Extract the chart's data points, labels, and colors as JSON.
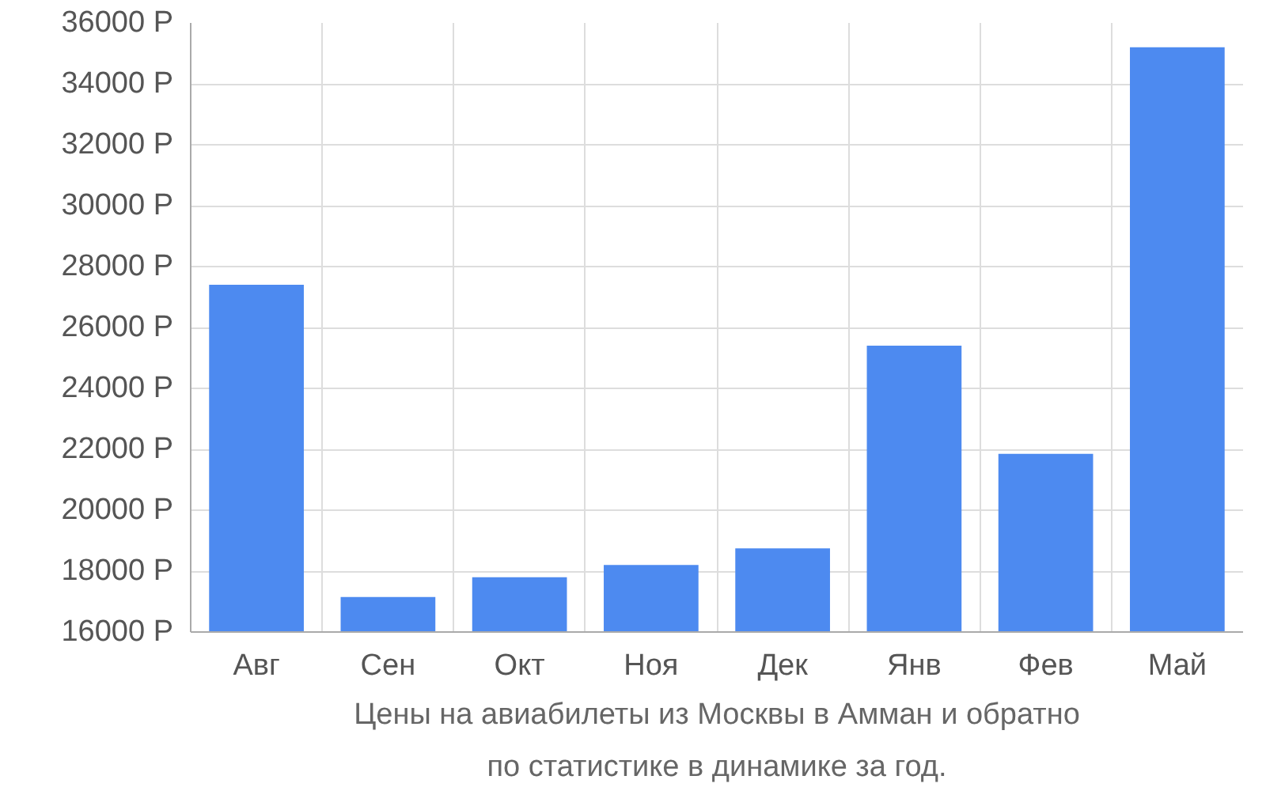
{
  "chart_data": {
    "type": "bar",
    "title": "Цены на авиабилеты из Москвы в Амман и обратно\nпо статистике в динамике за год.",
    "categories": [
      "Авг",
      "Сен",
      "Окт",
      "Ноя",
      "Дек",
      "Янв",
      "Фев",
      "Май"
    ],
    "values": [
      27400,
      17150,
      17800,
      18200,
      18750,
      25400,
      21850,
      35200
    ],
    "color": "#4d8af0",
    "ylim": [
      16000,
      36000
    ],
    "yticks": [
      {
        "value": 16000,
        "label": "16000 Р"
      },
      {
        "value": 18000,
        "label": "18000 Р"
      },
      {
        "value": 20000,
        "label": "20000 Р"
      },
      {
        "value": 22000,
        "label": "22000 Р"
      },
      {
        "value": 24000,
        "label": "24000 Р"
      },
      {
        "value": 26000,
        "label": "26000 Р"
      },
      {
        "value": 28000,
        "label": "28000 Р"
      },
      {
        "value": 30000,
        "label": "30000 Р"
      },
      {
        "value": 32000,
        "label": "32000 Р"
      },
      {
        "value": 34000,
        "label": "34000 Р"
      },
      {
        "value": 36000,
        "label": "36000 Р"
      }
    ],
    "grid": true
  }
}
